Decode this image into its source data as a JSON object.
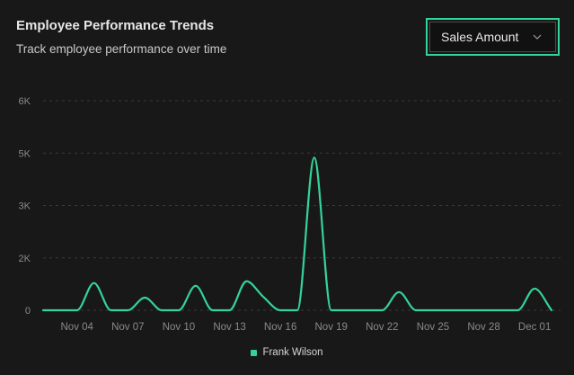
{
  "header": {
    "title": "Employee Performance Trends",
    "subtitle": "Track employee performance over time"
  },
  "metric_select": {
    "selected": "Sales Amount",
    "icon": "chevron-down-icon"
  },
  "colors": {
    "accent": "#34d399",
    "background": "#181818",
    "grid": "#3a3a3a",
    "tick_text": "#8a8a8a"
  },
  "legend": {
    "items": [
      {
        "label": "Frank Wilson",
        "color": "#34d399"
      }
    ]
  },
  "chart_data": {
    "type": "line",
    "title": "Employee Performance Trends",
    "subtitle": "Track employee performance over time",
    "xlabel": "",
    "ylabel": "Sales Amount",
    "ylim": [
      0,
      6000
    ],
    "y_ticks": [
      {
        "value": 0,
        "label": "0"
      },
      {
        "value": 1500,
        "label": "2K"
      },
      {
        "value": 3000,
        "label": "3K"
      },
      {
        "value": 4500,
        "label": "5K"
      },
      {
        "value": 6000,
        "label": "6K"
      }
    ],
    "x_tick_labels": [
      "Nov 04",
      "Nov 07",
      "Nov 10",
      "Nov 13",
      "Nov 16",
      "Nov 19",
      "Nov 22",
      "Nov 25",
      "Nov 28",
      "Dec 01"
    ],
    "grid": "horizontal-dashed",
    "legend_position": "bottom",
    "x": [
      "Nov 02",
      "Nov 03",
      "Nov 04",
      "Nov 05",
      "Nov 06",
      "Nov 07",
      "Nov 08",
      "Nov 09",
      "Nov 10",
      "Nov 11",
      "Nov 12",
      "Nov 13",
      "Nov 14",
      "Nov 15",
      "Nov 16",
      "Nov 17",
      "Nov 18",
      "Nov 19",
      "Nov 20",
      "Nov 21",
      "Nov 22",
      "Nov 23",
      "Nov 24",
      "Nov 25",
      "Nov 26",
      "Nov 27",
      "Nov 28",
      "Nov 29",
      "Nov 30",
      "Dec 01",
      "Dec 02"
    ],
    "series": [
      {
        "name": "Frank Wilson",
        "color": "#34d399",
        "values": [
          0,
          0,
          0,
          780,
          0,
          0,
          360,
          0,
          0,
          700,
          0,
          0,
          830,
          380,
          0,
          0,
          4370,
          0,
          0,
          0,
          0,
          520,
          0,
          0,
          0,
          0,
          0,
          0,
          0,
          620,
          0
        ]
      }
    ]
  }
}
